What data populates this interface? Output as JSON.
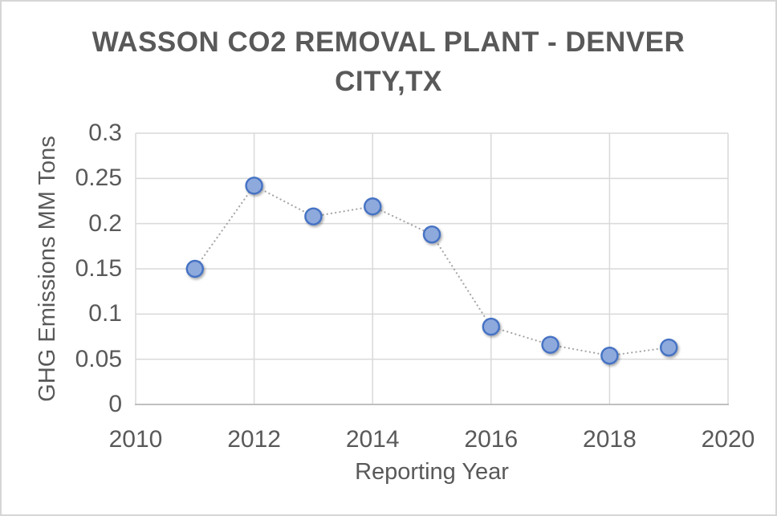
{
  "window": {
    "background_color": "#ffffff",
    "border_color": "#d6d6d6"
  },
  "title": {
    "line1": "WASSON CO2 REMOVAL PLANT - DENVER",
    "line2": "CITY,TX"
  },
  "chart_data": {
    "type": "line",
    "title": "WASSON CO2 REMOVAL PLANT - DENVER CITY,TX",
    "xlabel": "Reporting Year",
    "ylabel": "GHG Emissions MM Tons",
    "x": [
      2011,
      2012,
      2013,
      2014,
      2015,
      2016,
      2017,
      2018,
      2019
    ],
    "values": [
      0.15,
      0.242,
      0.208,
      0.219,
      0.188,
      0.086,
      0.066,
      0.054,
      0.063
    ],
    "xlim": [
      2010,
      2020
    ],
    "ylim": [
      0,
      0.3
    ],
    "xticks": {
      "values": [
        2010,
        2012,
        2014,
        2016,
        2018,
        2020
      ],
      "labels": [
        "2010",
        "2012",
        "2014",
        "2016",
        "2018",
        "2020"
      ]
    },
    "yticks": {
      "values": [
        0,
        0.05,
        0.1,
        0.15,
        0.2,
        0.25,
        0.3
      ],
      "labels": [
        "0",
        "0.05",
        "0.1",
        "0.15",
        "0.2",
        "0.25",
        "0.3"
      ]
    },
    "grid": true,
    "legend": null,
    "line_style": "dotted",
    "marker": "circle",
    "colors": {
      "marker_fill": "#8EA9DC",
      "marker_stroke": "#4472C4",
      "line": "#A6A6A6",
      "gridline": "#D9D9D9",
      "axis_line": "#BFBFBF",
      "text": "#595959"
    }
  }
}
